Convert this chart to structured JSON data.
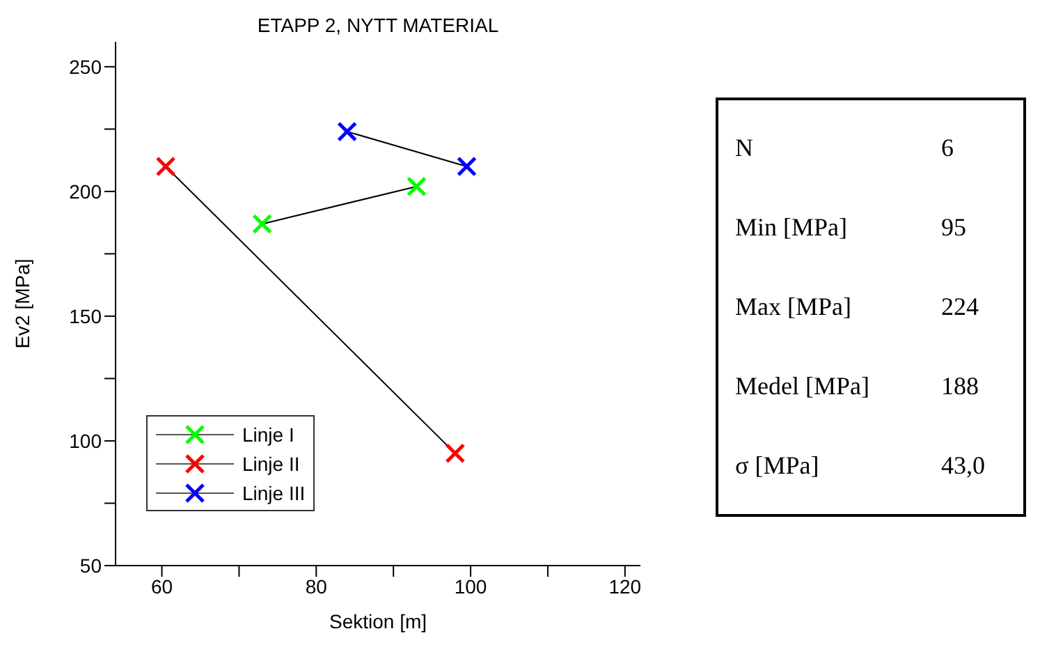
{
  "chart_data": [
    {
      "type": "line",
      "title": "ETAPP 2, NYTT MATERIAL",
      "xlabel": "Sektion [m]",
      "ylabel": "Ev2 [MPa]",
      "marker": "cross",
      "legend": "bottom left",
      "grid": false,
      "xlim": [
        54,
        122
      ],
      "xticks": [
        60,
        {
          "value": 70,
          "label": null
        },
        80,
        {
          "value": 90,
          "label": null
        },
        100,
        {
          "value": 110,
          "label": null
        },
        120
      ],
      "ylim": [
        50,
        260
      ],
      "yticks": [
        50,
        {
          "value": 75,
          "label": null
        },
        100,
        {
          "value": 125,
          "label": null
        },
        150,
        {
          "value": 175,
          "label": null
        },
        200,
        {
          "value": 225,
          "label": null
        },
        250
      ],
      "series": [
        {
          "name": "Linje I",
          "color": "#00ff00",
          "x": [
            73,
            93
          ],
          "values": [
            187,
            202
          ]
        },
        {
          "name": "Linje II",
          "color": "#ff0000",
          "x": [
            60.5,
            98
          ],
          "values": [
            210,
            95
          ]
        },
        {
          "name": "Linje III",
          "color": "#0000ff",
          "x": [
            84,
            99.5
          ],
          "values": [
            224,
            210
          ]
        }
      ]
    },
    {
      "type": "other",
      "annotations": [
        "N",
        "6",
        "Min [MPa]",
        "95",
        "Max [MPa]",
        "224",
        "Medel [MPa]",
        "188",
        "σ [MPa]",
        "43,0"
      ]
    }
  ]
}
